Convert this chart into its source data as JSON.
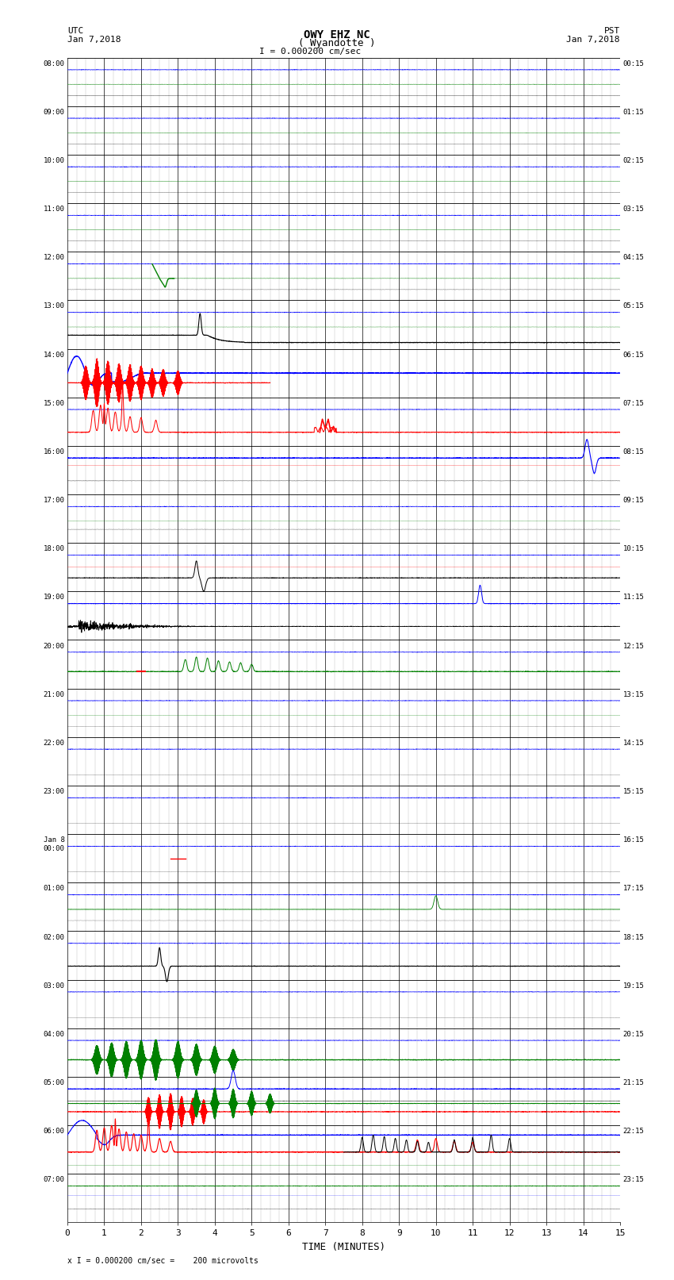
{
  "title_line1": "OWY EHZ NC",
  "title_line2": "( Wyandotte )",
  "scale_text": "I = 0.000200 cm/sec",
  "footer_text": "x I = 0.000200 cm/sec =    200 microvolts",
  "utc_label": "UTC",
  "utc_date": "Jan 7,2018",
  "pst_label": "PST",
  "pst_date": "Jan 7,2018",
  "xlabel": "TIME (MINUTES)",
  "xlim": [
    0,
    15
  ],
  "xticks": [
    0,
    1,
    2,
    3,
    4,
    5,
    6,
    7,
    8,
    9,
    10,
    11,
    12,
    13,
    14,
    15
  ],
  "num_rows": 24,
  "left_times": [
    "08:00",
    "09:00",
    "10:00",
    "11:00",
    "12:00",
    "13:00",
    "14:00",
    "15:00",
    "16:00",
    "17:00",
    "18:00",
    "19:00",
    "20:00",
    "21:00",
    "22:00",
    "23:00",
    "Jan 8\n00:00",
    "01:00",
    "02:00",
    "03:00",
    "04:00",
    "05:00",
    "06:00",
    "07:00"
  ],
  "right_times": [
    "00:15",
    "01:15",
    "02:15",
    "03:15",
    "04:15",
    "05:15",
    "06:15",
    "07:15",
    "08:15",
    "09:15",
    "10:15",
    "11:15",
    "12:15",
    "13:15",
    "14:15",
    "15:15",
    "16:15",
    "17:15",
    "18:15",
    "19:15",
    "20:15",
    "21:15",
    "22:15",
    "23:15"
  ],
  "background_color": "#ffffff",
  "grid_color": "#999999",
  "seed": 42
}
